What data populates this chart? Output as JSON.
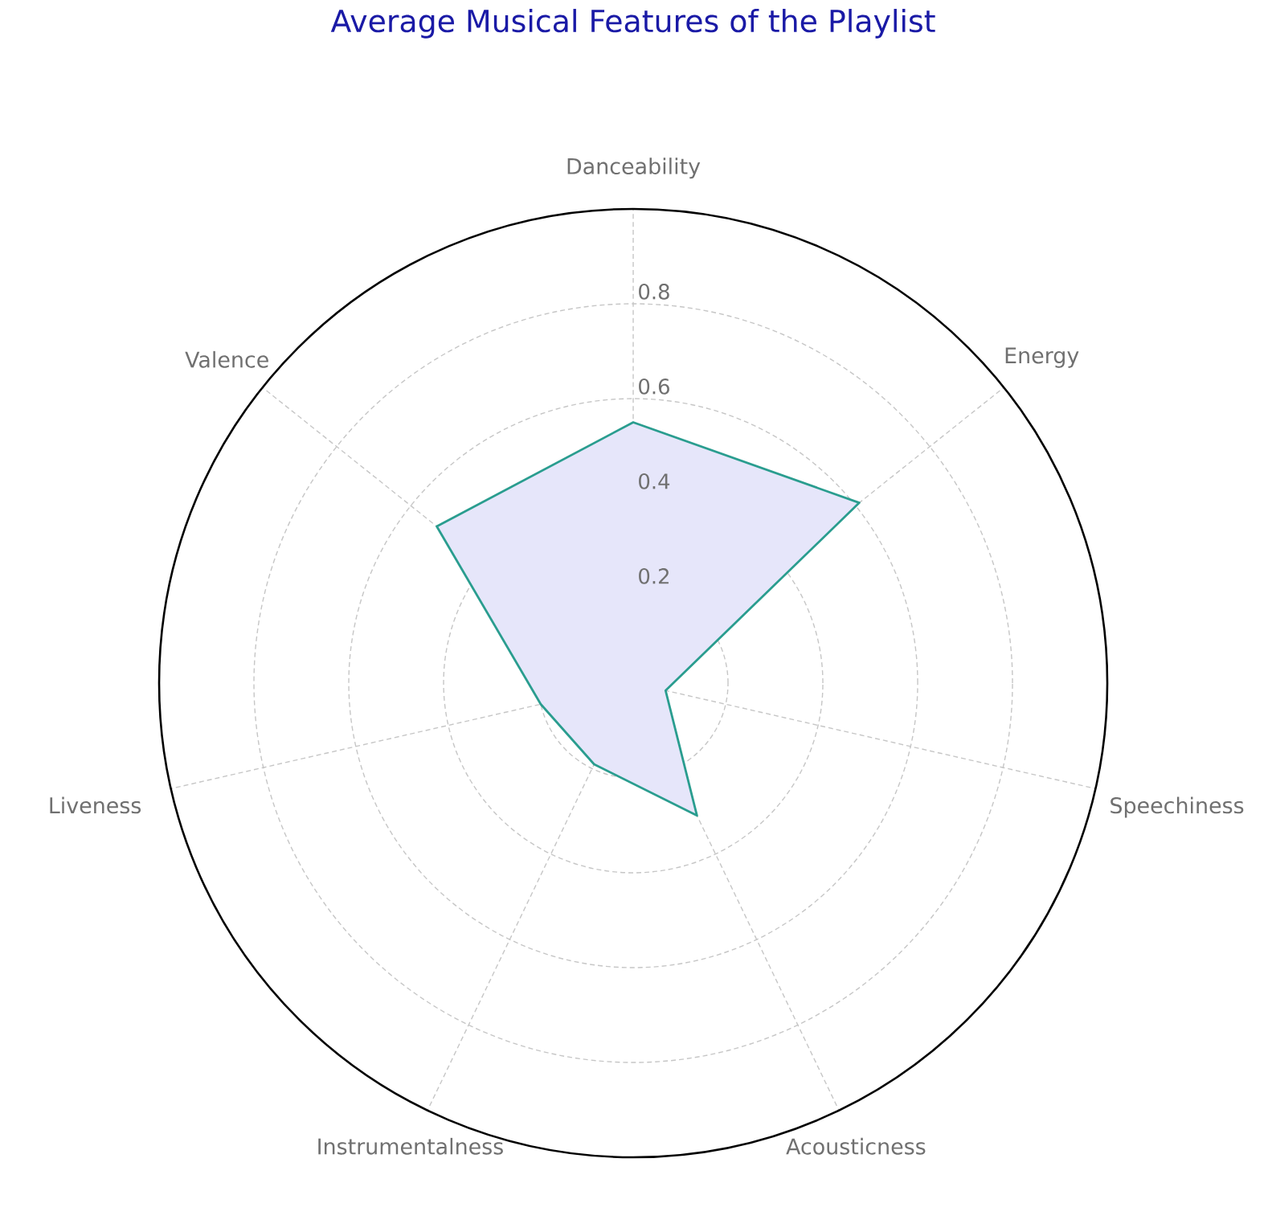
{
  "chart_data": {
    "type": "radar",
    "title": "Average Musical Features of the Playlist",
    "categories": [
      "Danceability",
      "Energy",
      "Speechiness",
      "Acousticness",
      "Instrumentalness",
      "Liveness",
      "Valence"
    ],
    "series": [
      {
        "color": "#2a9d8f",
        "values": [
          0.55,
          0.61,
          0.07,
          0.31,
          0.19,
          0.2,
          0.53
        ]
      }
    ],
    "ylim": [
      0,
      1
    ],
    "yticks": [
      0.2,
      0.4,
      0.6,
      0.8
    ],
    "grid": true
  }
}
